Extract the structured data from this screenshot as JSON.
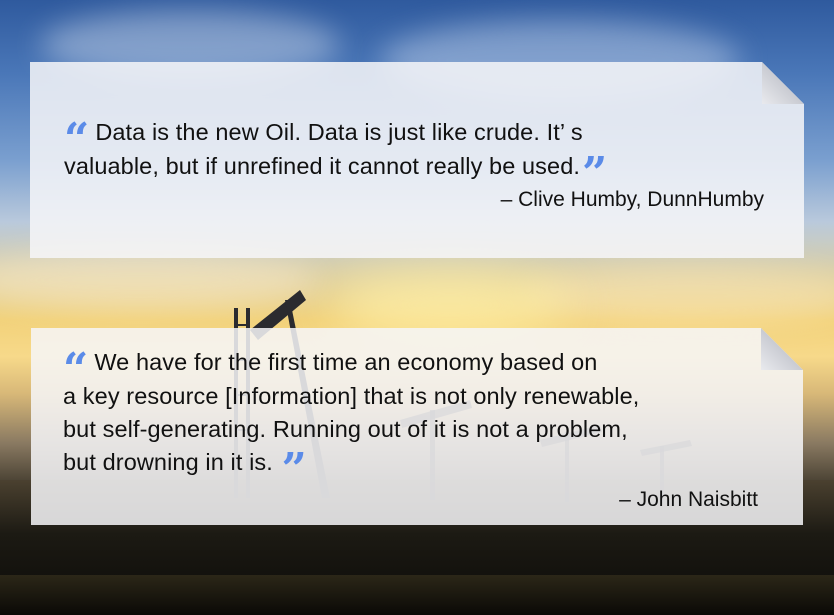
{
  "quotes": [
    {
      "lines": [
        "Data is the new Oil. Data is just like crude. It’ s",
        "valuable, but if unrefined it cannot really be used."
      ],
      "open_mark": "“",
      "close_mark": "”",
      "author": "– Clive Humby, DunnHumby"
    },
    {
      "lines": [
        "We have for the first time an economy based on",
        "a key resource [Information] that is not only renewable,",
        "but self-generating. Running out of it is not a problem,",
        "but drowning in it is."
      ],
      "open_mark": "“",
      "close_mark": "”",
      "author": "– John Naisbitt"
    }
  ],
  "colors": {
    "quote_mark": "#5b8be8",
    "card_background": "#f6f6f8",
    "text": "#111111"
  },
  "background": {
    "description_icon": "oil-field-sunset-photo"
  }
}
